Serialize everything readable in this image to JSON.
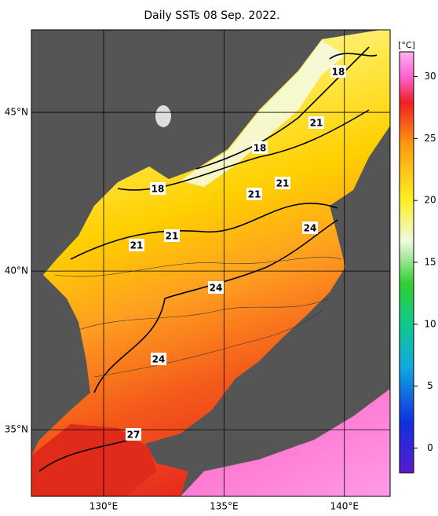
{
  "title": "Daily SSTs 08 Sep. 2022.",
  "map": {
    "xlim": [
      127,
      141.9
    ],
    "ylim": [
      32.9,
      47.6
    ],
    "xticks": [
      {
        "value": 130,
        "label": "130°E"
      },
      {
        "value": 135,
        "label": "135°E"
      },
      {
        "value": 140,
        "label": "140°E"
      }
    ],
    "yticks": [
      {
        "value": 35,
        "label": "35°N"
      },
      {
        "value": 40,
        "label": "40°N"
      },
      {
        "value": 45,
        "label": "45°N"
      }
    ]
  },
  "colorbar": {
    "unit": "[°C]",
    "lim": [
      -2,
      32
    ],
    "ticks": [
      0,
      5,
      10,
      15,
      20,
      25,
      30
    ]
  },
  "contour_labels": [
    18,
    21,
    18,
    18,
    21,
    21,
    24,
    21,
    21,
    24,
    24,
    27
  ]
}
